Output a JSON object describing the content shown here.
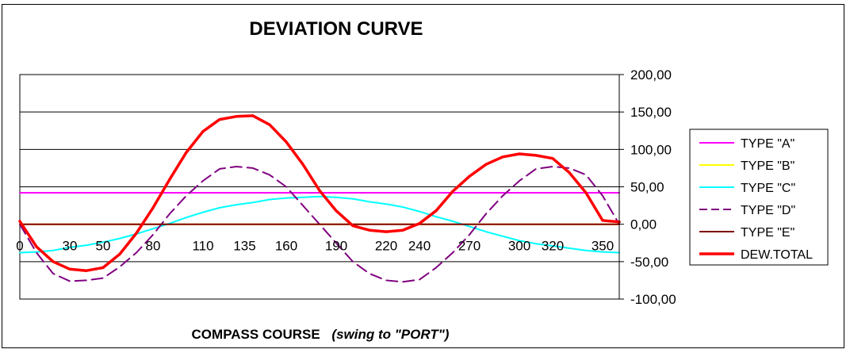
{
  "chart_data": {
    "type": "line",
    "title": "DEVIATION CURVE",
    "xlabel_main": "COMPASS COURSE",
    "xlabel_note": "(swing to \"PORT\")",
    "ylabel": "",
    "x": [
      0,
      10,
      20,
      30,
      40,
      50,
      60,
      70,
      80,
      90,
      100,
      110,
      120,
      130,
      140,
      150,
      160,
      170,
      180,
      190,
      200,
      210,
      220,
      230,
      240,
      250,
      260,
      270,
      280,
      290,
      300,
      310,
      320,
      330,
      340,
      350,
      360
    ],
    "xticks": [
      0,
      30,
      50,
      80,
      110,
      135,
      160,
      190,
      220,
      240,
      270,
      300,
      320,
      350
    ],
    "xlim": [
      0,
      360
    ],
    "ylim": [
      -100,
      200
    ],
    "yticks": [
      "-100,00",
      "-50,00",
      "0,00",
      "50,00",
      "100,00",
      "150,00",
      "200,00"
    ],
    "grid": "horizontal",
    "legend_position": "right",
    "series": [
      {
        "name": "TYPE \"A\"",
        "color": "#FF00FF",
        "dash": false,
        "width": 2,
        "values": [
          42,
          42,
          42,
          42,
          42,
          42,
          42,
          42,
          42,
          42,
          42,
          42,
          42,
          42,
          42,
          42,
          42,
          42,
          42,
          42,
          42,
          42,
          42,
          42,
          42,
          42,
          42,
          42,
          42,
          42,
          42,
          42,
          42,
          42,
          42,
          42,
          42
        ]
      },
      {
        "name": "TYPE \"B\"",
        "color": "#FFFF00",
        "dash": false,
        "width": 2,
        "values": [
          0,
          0,
          0,
          0,
          0,
          0,
          0,
          0,
          0,
          0,
          0,
          0,
          0,
          0,
          0,
          0,
          0,
          0,
          0,
          0,
          0,
          0,
          0,
          0,
          0,
          0,
          0,
          0,
          0,
          0,
          0,
          0,
          0,
          0,
          0,
          0,
          0
        ]
      },
      {
        "name": "TYPE \"C\"",
        "color": "#00FFFF",
        "dash": false,
        "width": 2,
        "values": [
          -38,
          -37,
          -35,
          -31,
          -28,
          -24,
          -19,
          -13,
          -6,
          1,
          9,
          16,
          22,
          26,
          29,
          33,
          35,
          36,
          37,
          36,
          34,
          30,
          27,
          23,
          17,
          10,
          4,
          -3,
          -10,
          -16,
          -22,
          -26,
          -29,
          -32,
          -35,
          -37,
          -38
        ]
      },
      {
        "name": "TYPE \"D\"",
        "color": "#800080",
        "dash": true,
        "width": 2,
        "values": [
          0,
          -38,
          -66,
          -76,
          -75,
          -72,
          -57,
          -38,
          -14,
          14,
          38,
          58,
          74,
          77,
          75,
          66,
          50,
          25,
          0,
          -25,
          -50,
          -66,
          -75,
          -77,
          -74,
          -58,
          -38,
          -14,
          14,
          38,
          58,
          74,
          77,
          75,
          66,
          38,
          0
        ]
      },
      {
        "name": "TYPE \"E\"",
        "color": "#800000",
        "dash": false,
        "width": 2,
        "values": [
          0,
          0,
          0,
          0,
          0,
          0,
          0,
          0,
          0,
          0,
          0,
          0,
          0,
          0,
          0,
          0,
          0,
          0,
          0,
          0,
          0,
          0,
          0,
          0,
          0,
          0,
          0,
          0,
          0,
          0,
          0,
          0,
          0,
          0,
          0,
          0,
          0
        ]
      },
      {
        "name": "DEW.TOTAL",
        "color": "#FF0000",
        "dash": false,
        "width": 3.5,
        "values": [
          4,
          -30,
          -50,
          -60,
          -62,
          -58,
          -40,
          -12,
          22,
          60,
          96,
          124,
          140,
          144,
          145,
          133,
          110,
          80,
          45,
          18,
          -2,
          -8,
          -10,
          -8,
          1,
          18,
          44,
          64,
          80,
          90,
          94,
          92,
          88,
          69,
          42,
          5,
          3
        ]
      }
    ]
  }
}
